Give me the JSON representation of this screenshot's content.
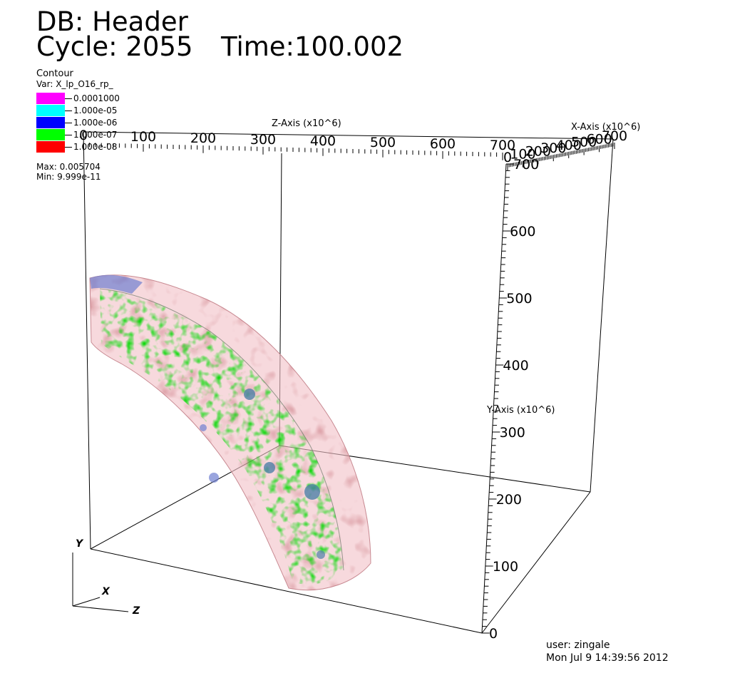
{
  "header": {
    "db_label": "DB: Header",
    "cycle_label": "Cycle: 2055",
    "time_label": "Time:100.002"
  },
  "legend": {
    "plot_type": "Contour",
    "var_label": "Var: X_lp_O16_rp_",
    "levels": [
      {
        "label": "0.0001000",
        "color": "#ff00ff"
      },
      {
        "label": "1.000e-05",
        "color": "#00ffff"
      },
      {
        "label": "1.000e-06",
        "color": "#0000ff"
      },
      {
        "label": "1.000e-07",
        "color": "#00ff00"
      },
      {
        "label": "1.000e-08",
        "color": "#ff0000"
      }
    ],
    "max_label": "Max:  0.005704",
    "min_label": "Min:  9.999e-11"
  },
  "axes": {
    "z_title": "Z-Axis (x10^6)",
    "x_title": "X-Axis (x10^6)",
    "y_title": "Y-Axis (x10^6)",
    "z_ticks": [
      "0",
      "100",
      "200",
      "300",
      "400",
      "500",
      "600",
      "700"
    ],
    "x_ticks": [
      "0",
      "100",
      "200",
      "300",
      "400",
      "500",
      "600",
      "700"
    ],
    "y_ticks": [
      "0",
      "100",
      "200",
      "300",
      "400",
      "500",
      "600",
      "700"
    ],
    "triad": {
      "x": "X",
      "y": "Y",
      "z": "Z"
    }
  },
  "footer": {
    "user_label": "user: zingale",
    "date_label": "Mon Jul  9 14:39:56 2012"
  }
}
